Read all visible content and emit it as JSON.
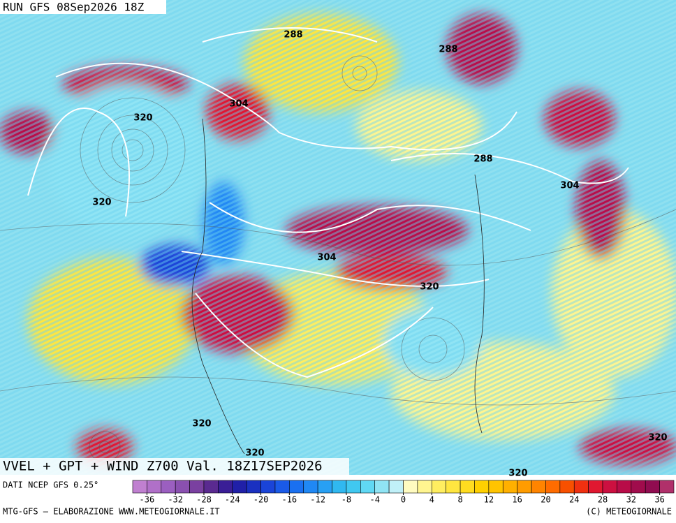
{
  "header": {
    "run": "RUN GFS 08Sep2026 18Z",
    "title": "VVEL + GPT + WIND Z700 Val. 18Z17SEP2026"
  },
  "contour_labels": [
    "288",
    "288",
    "304",
    "320",
    "320",
    "288",
    "304",
    "304",
    "320",
    "320",
    "320",
    "320",
    "320"
  ],
  "footer": {
    "source": "DATI NCEP GFS 0.25°",
    "credit": "MTG-GFS — ELABORAZIONE WWW.METEOGIORNALE.IT",
    "copyright": "(C) METEOGIORNALE"
  },
  "colorbar": {
    "range": [
      -38,
      38
    ],
    "ticks": [
      -36,
      -32,
      -28,
      -24,
      -20,
      -16,
      -12,
      -8,
      -4,
      0,
      4,
      8,
      12,
      16,
      20,
      24,
      28,
      32,
      36
    ],
    "colors": [
      "#c080d0",
      "#b070c8",
      "#9b5fc0",
      "#8a50b0",
      "#7a40a0",
      "#5a2a90",
      "#3a1e96",
      "#2020a8",
      "#1a30c0",
      "#1a44d8",
      "#1a5ae8",
      "#1a70f0",
      "#2088f4",
      "#28a0f4",
      "#30b8f0",
      "#40c8f0",
      "#60d8f4",
      "#90e4f4",
      "#c0f0f8",
      "#fffbc0",
      "#fff590",
      "#ffee60",
      "#ffe640",
      "#ffdc20",
      "#ffd000",
      "#ffc400",
      "#ffb000",
      "#ff9c00",
      "#ff8400",
      "#ff6c00",
      "#f85000",
      "#f03010",
      "#e01830",
      "#cc1040",
      "#b80c48",
      "#a00c4c",
      "#900c50",
      "#b0306a"
    ]
  }
}
